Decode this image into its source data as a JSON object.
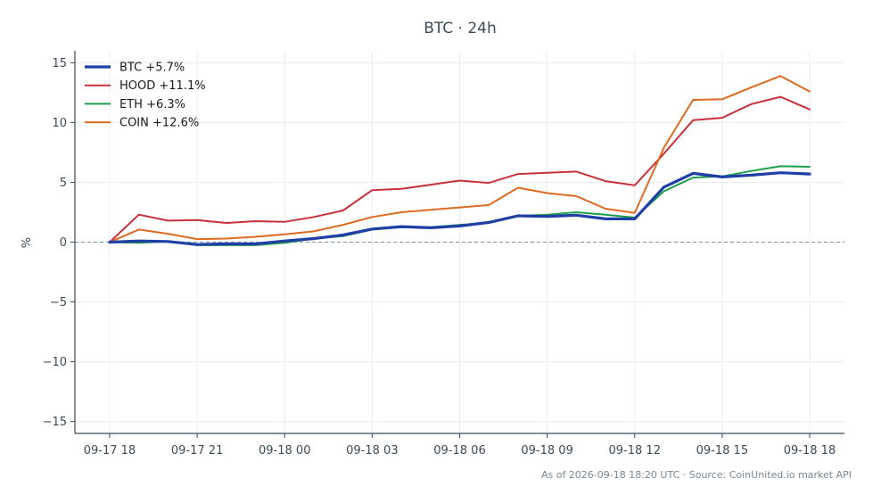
{
  "chart_data": {
    "type": "line",
    "title": "BTC · 24h",
    "ylabel": "%",
    "xlabel": "",
    "ylim": [
      -16,
      16
    ],
    "yticks": [
      15,
      10,
      5,
      0,
      -5,
      -10,
      -15
    ],
    "ytick_labels": [
      "15",
      "10",
      "5",
      "0",
      "−5",
      "−10",
      "−15"
    ],
    "xticks": [
      0,
      3,
      6,
      9,
      12,
      15,
      18,
      21,
      24
    ],
    "xtick_labels": [
      "09-17 18",
      "09-17 21",
      "09-18 00",
      "09-18 03",
      "09-18 06",
      "09-18 09",
      "09-18 12",
      "09-18 15",
      "09-18 18"
    ],
    "x": [
      0,
      1,
      2,
      3,
      4,
      5,
      6,
      7,
      8,
      9,
      10,
      11,
      12,
      13,
      14,
      15,
      16,
      17,
      18,
      19,
      20,
      21,
      22,
      23,
      24
    ],
    "grid": true,
    "zero_line": true,
    "legend_position": "top-left",
    "series": [
      {
        "name": "BTC +5.7%",
        "color": "#1f3fa6",
        "width": 3.2,
        "values": [
          0,
          0.1,
          0.05,
          -0.2,
          -0.15,
          -0.15,
          0.1,
          0.3,
          0.6,
          1.1,
          1.3,
          1.2,
          1.35,
          1.65,
          2.2,
          2.15,
          2.25,
          1.95,
          1.95,
          4.6,
          5.75,
          5.45,
          5.6,
          5.8,
          5.7
        ]
      },
      {
        "name": "HOOD +11.1%",
        "color": "#c8313b",
        "width": 2,
        "values": [
          0,
          2.3,
          1.8,
          1.85,
          1.6,
          1.75,
          1.7,
          2.1,
          2.65,
          4.35,
          4.45,
          4.8,
          5.15,
          4.95,
          5.7,
          5.8,
          5.9,
          5.1,
          4.75,
          7.4,
          10.2,
          10.4,
          11.55,
          12.15,
          11.1
        ]
      },
      {
        "name": "ETH +6.3%",
        "color": "#1e9e4a",
        "width": 2,
        "values": [
          0,
          -0.05,
          0.05,
          -0.25,
          -0.25,
          -0.25,
          -0.05,
          0.3,
          0.5,
          1.05,
          1.25,
          1.25,
          1.45,
          1.6,
          2.2,
          2.3,
          2.5,
          2.3,
          2.05,
          4.25,
          5.4,
          5.5,
          5.95,
          6.35,
          6.3
        ]
      },
      {
        "name": "COIN +12.6%",
        "color": "#df6a22",
        "width": 2,
        "values": [
          0,
          1.05,
          0.7,
          0.25,
          0.3,
          0.45,
          0.65,
          0.9,
          1.45,
          2.1,
          2.5,
          2.7,
          2.9,
          3.1,
          4.55,
          4.1,
          3.85,
          2.8,
          2.45,
          7.9,
          11.9,
          11.95,
          12.95,
          13.9,
          12.6
        ]
      }
    ]
  },
  "footer": {
    "text": "As of 2026-09-18 18:20 UTC · Source: CoinUnited.io market API"
  }
}
